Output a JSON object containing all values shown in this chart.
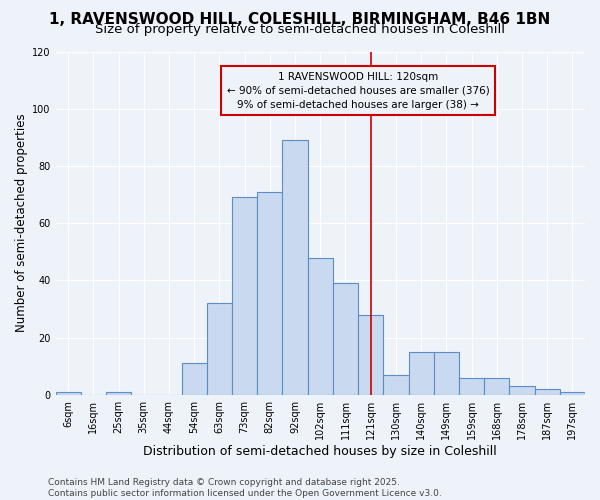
{
  "title": "1, RAVENSWOOD HILL, COLESHILL, BIRMINGHAM, B46 1BN",
  "subtitle": "Size of property relative to semi-detached houses in Coleshill",
  "xlabel": "Distribution of semi-detached houses by size in Coleshill",
  "ylabel": "Number of semi-detached properties",
  "bar_labels": [
    "6sqm",
    "16sqm",
    "25sqm",
    "35sqm",
    "44sqm",
    "54sqm",
    "63sqm",
    "73sqm",
    "82sqm",
    "92sqm",
    "102sqm",
    "111sqm",
    "121sqm",
    "130sqm",
    "140sqm",
    "149sqm",
    "159sqm",
    "168sqm",
    "178sqm",
    "187sqm",
    "197sqm"
  ],
  "bar_values": [
    1,
    0,
    1,
    0,
    0,
    11,
    32,
    69,
    71,
    89,
    48,
    39,
    28,
    7,
    15,
    15,
    6,
    6,
    3,
    2,
    1
  ],
  "bar_color": "#c8d9f0",
  "bar_edge_color": "#5b8ec4",
  "vline_x": 12,
  "vline_color": "#cc0000",
  "annotation_text": "1 RAVENSWOOD HILL: 120sqm\n← 90% of semi-detached houses are smaller (376)\n9% of semi-detached houses are larger (38) →",
  "annotation_box_color": "#cc0000",
  "annotation_text_color": "#000000",
  "ylim": [
    0,
    120
  ],
  "yticks": [
    0,
    20,
    40,
    60,
    80,
    100,
    120
  ],
  "footer": "Contains HM Land Registry data © Crown copyright and database right 2025.\nContains public sector information licensed under the Open Government Licence v3.0.",
  "background_color": "#eef2f9",
  "grid_color": "#ffffff",
  "title_fontsize": 11,
  "subtitle_fontsize": 9.5,
  "xlabel_fontsize": 9,
  "ylabel_fontsize": 8.5,
  "tick_fontsize": 7,
  "footer_fontsize": 6.5,
  "annotation_fontsize": 7.5
}
